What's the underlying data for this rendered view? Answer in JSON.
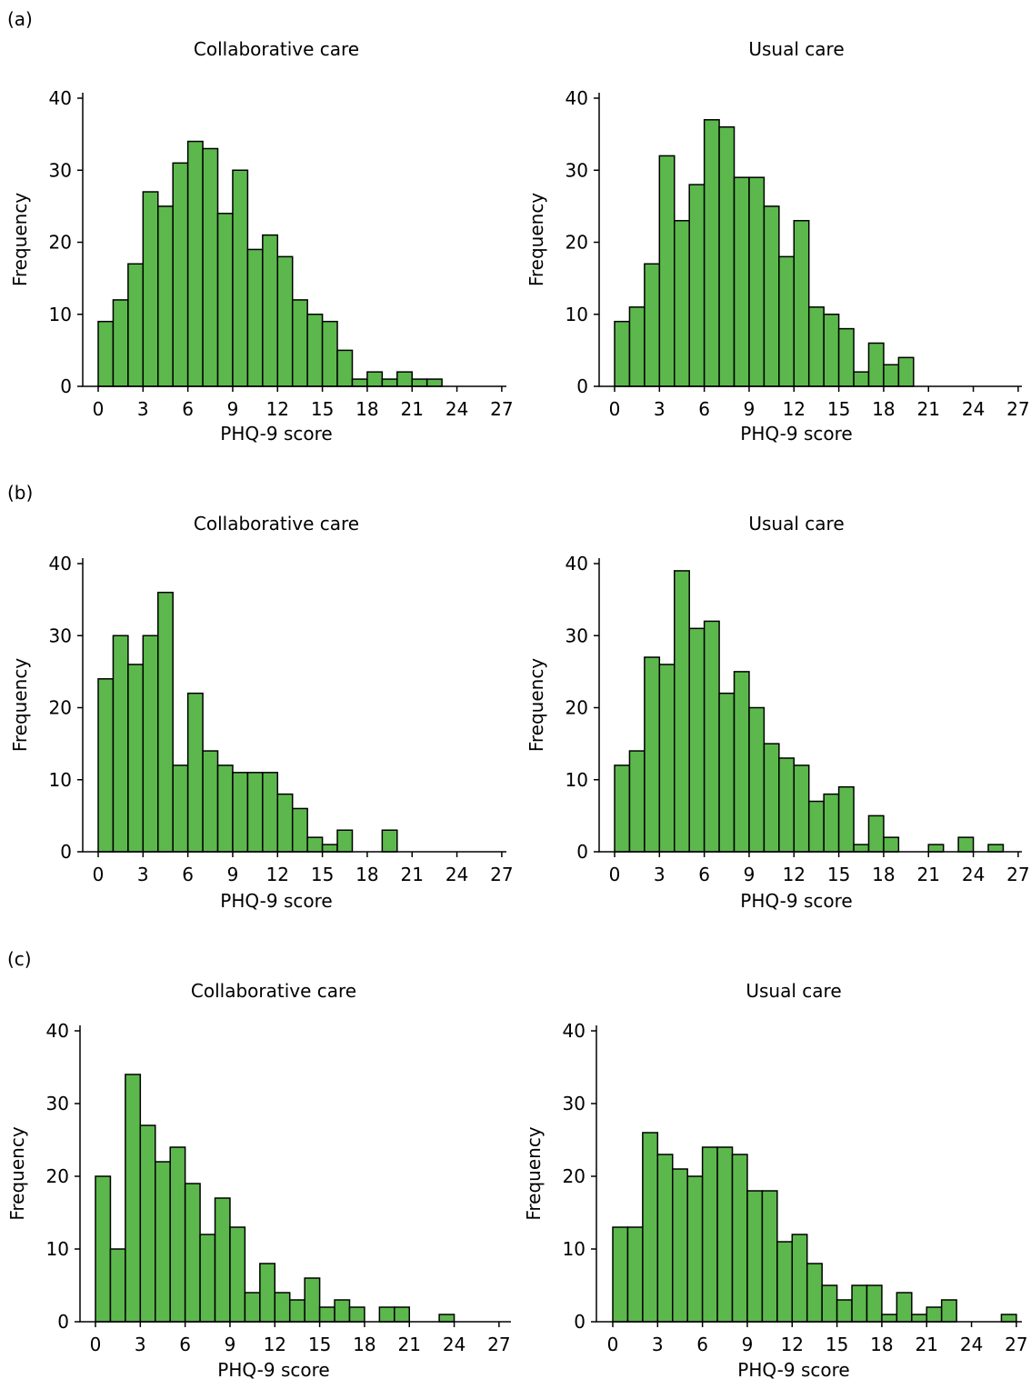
{
  "panels": [
    {
      "letter": "(a)"
    },
    {
      "letter": "(b)"
    },
    {
      "letter": "(c)"
    }
  ],
  "chart_data": [
    {
      "type": "bar",
      "panel": "(a)",
      "title": "Collaborative care",
      "xlabel": "PHQ-9 score",
      "ylabel": "Frequency",
      "xlim": [
        0,
        27
      ],
      "ylim": [
        0,
        40
      ],
      "xticks": [
        "0",
        "3",
        "6",
        "9",
        "12",
        "15",
        "18",
        "21",
        "24",
        "27"
      ],
      "yticks": [
        "0",
        "10",
        "20",
        "30",
        "40"
      ],
      "bin_width": 1,
      "bin_starts": [
        0,
        1,
        2,
        3,
        4,
        5,
        6,
        7,
        8,
        9,
        10,
        11,
        12,
        13,
        14,
        15,
        16,
        17,
        18,
        19,
        20,
        21,
        22
      ],
      "values": [
        9,
        12,
        17,
        27,
        25,
        31,
        34,
        33,
        24,
        30,
        19,
        21,
        18,
        12,
        10,
        9,
        5,
        1,
        2,
        1,
        2,
        1,
        1
      ]
    },
    {
      "type": "bar",
      "panel": "(a)",
      "title": "Usual care",
      "xlabel": "PHQ-9 score",
      "ylabel": "Frequency",
      "xlim": [
        0,
        27
      ],
      "ylim": [
        0,
        40
      ],
      "xticks": [
        "0",
        "3",
        "6",
        "9",
        "12",
        "15",
        "18",
        "21",
        "24",
        "27"
      ],
      "yticks": [
        "0",
        "10",
        "20",
        "30",
        "40"
      ],
      "bin_width": 1,
      "bin_starts": [
        0,
        1,
        2,
        3,
        4,
        5,
        6,
        7,
        8,
        9,
        10,
        11,
        12,
        13,
        14,
        15,
        16,
        17,
        18,
        19
      ],
      "values": [
        9,
        11,
        17,
        32,
        23,
        28,
        37,
        36,
        29,
        29,
        25,
        18,
        23,
        11,
        10,
        8,
        2,
        6,
        3,
        4
      ]
    },
    {
      "type": "bar",
      "panel": "(b)",
      "title": "Collaborative care",
      "xlabel": "PHQ-9 score",
      "ylabel": "Frequency",
      "xlim": [
        0,
        27
      ],
      "ylim": [
        0,
        40
      ],
      "xticks": [
        "0",
        "3",
        "6",
        "9",
        "12",
        "15",
        "18",
        "21",
        "24",
        "27"
      ],
      "yticks": [
        "0",
        "10",
        "20",
        "30",
        "40"
      ],
      "bin_width": 1,
      "bin_starts": [
        0,
        1,
        2,
        3,
        4,
        5,
        6,
        7,
        8,
        9,
        10,
        11,
        12,
        13,
        14,
        15,
        16,
        19
      ],
      "values": [
        24,
        30,
        26,
        30,
        36,
        12,
        22,
        14,
        12,
        11,
        11,
        11,
        8,
        6,
        2,
        1,
        3,
        3
      ]
    },
    {
      "type": "bar",
      "panel": "(b)",
      "title": "Usual care",
      "xlabel": "PHQ-9 score",
      "ylabel": "Frequency",
      "xlim": [
        0,
        27
      ],
      "ylim": [
        0,
        40
      ],
      "xticks": [
        "0",
        "3",
        "6",
        "9",
        "12",
        "15",
        "18",
        "21",
        "24",
        "27"
      ],
      "yticks": [
        "0",
        "10",
        "20",
        "30",
        "40"
      ],
      "bin_width": 1,
      "bin_starts": [
        0,
        1,
        2,
        3,
        4,
        5,
        6,
        7,
        8,
        9,
        10,
        11,
        12,
        13,
        14,
        15,
        16,
        17,
        18,
        21,
        23,
        25
      ],
      "values": [
        12,
        14,
        27,
        26,
        39,
        31,
        32,
        22,
        25,
        20,
        15,
        13,
        12,
        7,
        8,
        9,
        1,
        5,
        2,
        1,
        2,
        1
      ]
    },
    {
      "type": "bar",
      "panel": "(c)",
      "title": "Collaborative care",
      "xlabel": "PHQ-9 score",
      "ylabel": "Frequency",
      "xlim": [
        0,
        27
      ],
      "ylim": [
        0,
        40
      ],
      "xticks": [
        "0",
        "3",
        "6",
        "9",
        "12",
        "15",
        "18",
        "21",
        "24",
        "27"
      ],
      "yticks": [
        "0",
        "10",
        "20",
        "30",
        "40"
      ],
      "bin_width": 1,
      "bin_starts": [
        0,
        1,
        2,
        3,
        4,
        5,
        6,
        7,
        8,
        9,
        10,
        11,
        12,
        13,
        14,
        15,
        16,
        17,
        19,
        20,
        23
      ],
      "values": [
        20,
        10,
        34,
        27,
        22,
        24,
        19,
        12,
        17,
        13,
        4,
        8,
        4,
        3,
        6,
        2,
        3,
        2,
        2,
        2,
        1
      ]
    },
    {
      "type": "bar",
      "panel": "(c)",
      "title": "Usual care",
      "xlabel": "PHQ-9 score",
      "ylabel": "Frequency",
      "xlim": [
        0,
        27
      ],
      "ylim": [
        0,
        40
      ],
      "xticks": [
        "0",
        "3",
        "6",
        "9",
        "12",
        "15",
        "18",
        "21",
        "24",
        "27"
      ],
      "yticks": [
        "0",
        "10",
        "20",
        "30",
        "40"
      ],
      "bin_width": 1,
      "bin_starts": [
        0,
        1,
        2,
        3,
        4,
        5,
        6,
        7,
        8,
        9,
        10,
        11,
        12,
        13,
        14,
        15,
        16,
        17,
        18,
        19,
        20,
        21,
        22,
        26
      ],
      "values": [
        13,
        13,
        26,
        23,
        21,
        20,
        24,
        24,
        23,
        18,
        18,
        11,
        12,
        8,
        5,
        3,
        5,
        5,
        1,
        4,
        1,
        2,
        3,
        1
      ]
    }
  ]
}
